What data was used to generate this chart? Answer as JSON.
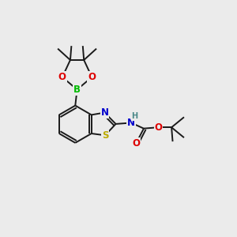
{
  "bg_color": "#ebebeb",
  "bond_color": "#1a1a1a",
  "bond_lw": 1.4,
  "atom_colors": {
    "O": "#dd0000",
    "N": "#0000cc",
    "S": "#bbaa00",
    "B": "#00bb00",
    "H": "#4a8888",
    "C": "#1a1a1a"
  },
  "font_size": 8.5,
  "fig_w": 3.0,
  "fig_h": 3.0,
  "dpi": 100,
  "xmin": 0,
  "xmax": 10,
  "ymin": 0,
  "ymax": 10
}
